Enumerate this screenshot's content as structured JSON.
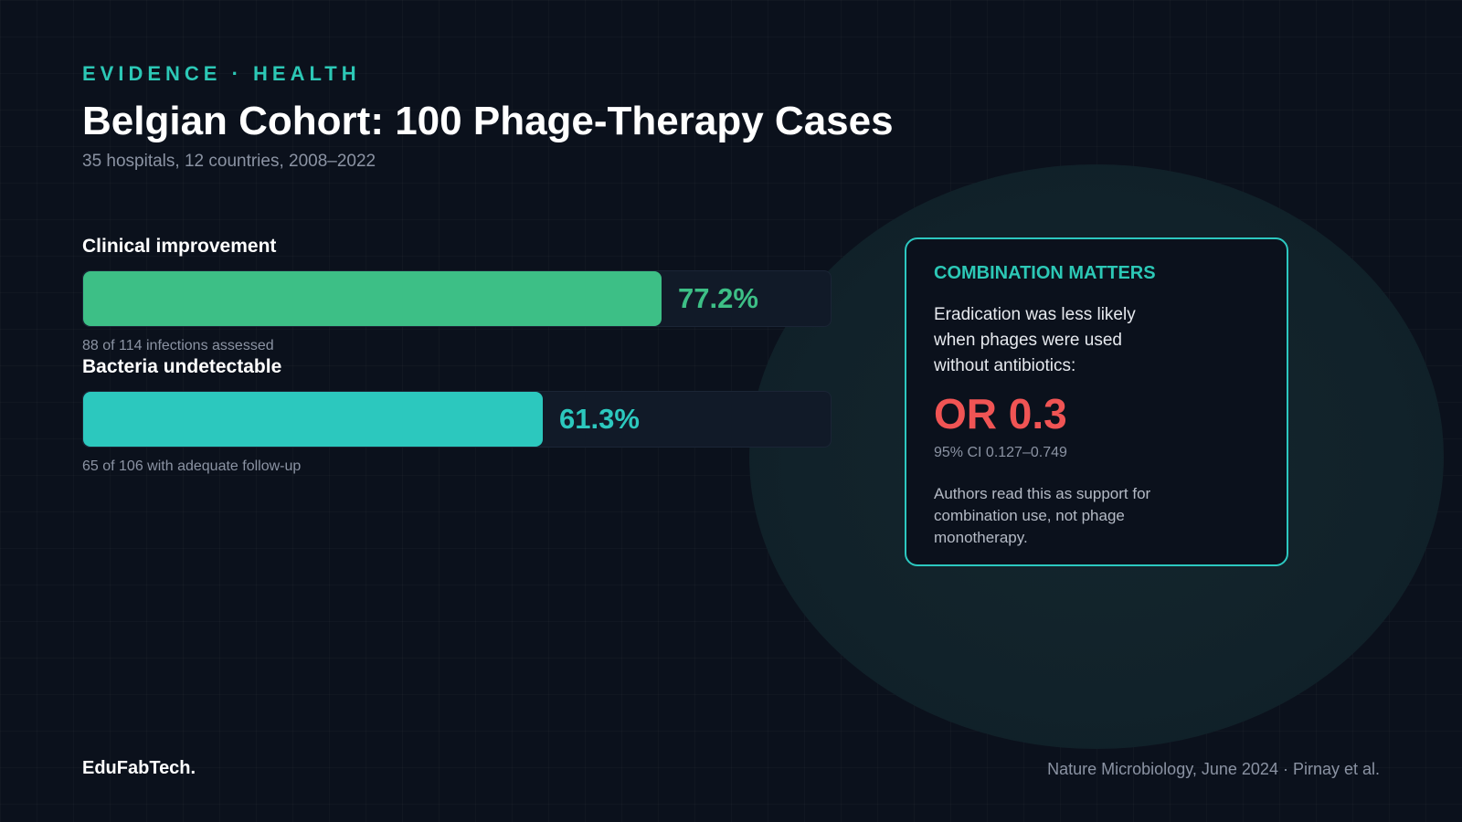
{
  "header": {
    "eyebrow": "EVIDENCE · HEALTH",
    "title": "Belgian Cohort: 100 Phage-Therapy Cases",
    "subtitle": "35 hospitals, 12 countries, 2008–2022"
  },
  "metrics": [
    {
      "label": "Clinical improvement",
      "value": 77.2,
      "value_text": "77.2%",
      "note": "88 of 114 infections assessed",
      "color": "#3dbf86"
    },
    {
      "label": "Bacteria undetectable",
      "value": 61.3,
      "value_text": "61.3%",
      "note": "65 of 106 with adequate follow-up",
      "color": "#2cc8be"
    }
  ],
  "card": {
    "title": "COMBINATION MATTERS",
    "text": "Eradication was less likely when phages were used without antibiotics:",
    "or_value": "OR 0.3",
    "ci": "95% CI 0.127–0.749",
    "footnote": "Authors read this as support for combination use, not phage monotherapy."
  },
  "footer": {
    "brand": "EduFabTech.",
    "source": "Nature Microbiology, June 2024 · Pirnay et al."
  },
  "colors": {
    "background": "#0b111c",
    "accent": "#2cc8b6",
    "green": "#3dbf86",
    "teal": "#2cc8be",
    "red": "#f05454"
  }
}
